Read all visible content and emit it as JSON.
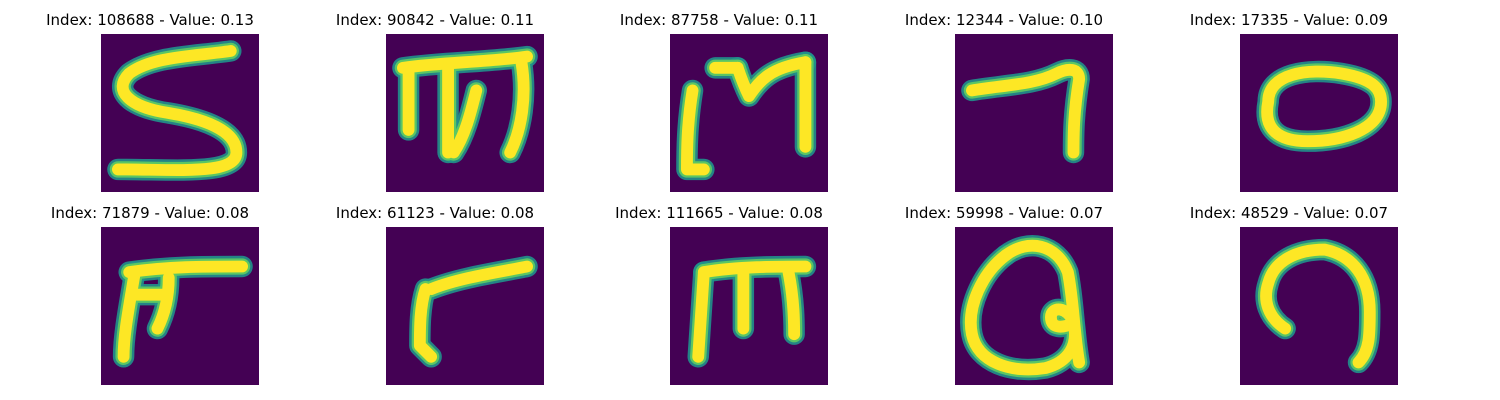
{
  "colors": {
    "background": "#440154",
    "stroke_core": "#fde725",
    "stroke_edge": "#21918c",
    "stroke_mid": "#5ec962"
  },
  "panels": [
    {
      "title": "Index: 108688 - Value: 0.13",
      "glyph": "S"
    },
    {
      "title": "Index: 90842 - Value: 0.11",
      "glyph": "m"
    },
    {
      "title": "Index: 87758 - Value: 0.11",
      "glyph": "m"
    },
    {
      "title": "Index: 12344 - Value: 0.10",
      "glyph": "7"
    },
    {
      "title": "Index: 17335 - Value: 0.09",
      "glyph": "0"
    },
    {
      "title": "Index: 71879 - Value: 0.08",
      "glyph": "F"
    },
    {
      "title": "Index: 61123 - Value: 0.08",
      "glyph": "r"
    },
    {
      "title": "Index: 111665 - Value: 0.08",
      "glyph": "m"
    },
    {
      "title": "Index: 59998 - Value: 0.07",
      "glyph": "a"
    },
    {
      "title": "Index: 48529 - Value: 0.07",
      "glyph": "n"
    }
  ]
}
